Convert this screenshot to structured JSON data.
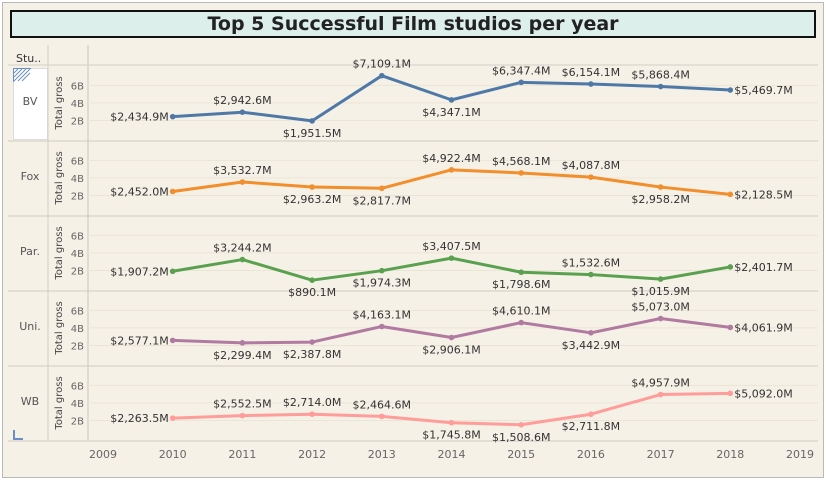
{
  "title": "Top 5 Successful Film studios per year",
  "studio_header": "Stu..",
  "chart_data": {
    "type": "line",
    "title": "Top 5 Successful Film studios per year",
    "row_dimension": "Stu..",
    "ylabel": "Total gross",
    "x": [
      2010,
      2011,
      2012,
      2013,
      2014,
      2015,
      2016,
      2017,
      2018
    ],
    "x_axis_ticks": [
      "2009",
      "2010",
      "2011",
      "2012",
      "2013",
      "2014",
      "2015",
      "2016",
      "2017",
      "2018",
      "2019"
    ],
    "y_axis_ticks": [
      "2B",
      "4B",
      "6B"
    ],
    "y_unit": "billions",
    "ylim": [
      0,
      7.3
    ],
    "grid": true,
    "series": [
      {
        "name": "BV",
        "color": "#4e79a7",
        "values": [
          2.4349,
          2.9426,
          1.9515,
          7.1091,
          4.3471,
          6.3474,
          6.1541,
          5.8684,
          5.4697
        ],
        "labels": [
          "$2,434.9M",
          "$2,942.6M",
          "$1,951.5M",
          "$7,109.1M",
          "$4,347.1M",
          "$6,347.4M",
          "$6,154.1M",
          "$5,868.4M",
          "$5,469.7M"
        ]
      },
      {
        "name": "Fox",
        "color": "#f28e2b",
        "values": [
          2.452,
          3.5327,
          2.9632,
          2.8177,
          4.9224,
          4.5681,
          4.0878,
          2.9582,
          2.1285
        ],
        "labels": [
          "$2,452.0M",
          "$3,532.7M",
          "$2,963.2M",
          "$2,817.7M",
          "$4,922.4M",
          "$4,568.1M",
          "$4,087.8M",
          "$2,958.2M",
          "$2,128.5M"
        ]
      },
      {
        "name": "Par.",
        "color": "#59a14f",
        "values": [
          1.9072,
          3.2442,
          0.8901,
          1.9743,
          3.4075,
          1.7986,
          1.5326,
          1.0159,
          2.4017
        ],
        "labels": [
          "$1,907.2M",
          "$3,244.2M",
          "$890.1M",
          "$1,974.3M",
          "$3,407.5M",
          "$1,798.6M",
          "$1,532.6M",
          "$1,015.9M",
          "$2,401.7M"
        ]
      },
      {
        "name": "Uni.",
        "color": "#b07aa1",
        "values": [
          2.5771,
          2.2994,
          2.3878,
          4.1631,
          2.9061,
          4.6101,
          3.4429,
          5.073,
          4.0619
        ],
        "labels": [
          "$2,577.1M",
          "$2,299.4M",
          "$2,387.8M",
          "$4,163.1M",
          "$2,906.1M",
          "$4,610.1M",
          "$3,442.9M",
          "$5,073.0M",
          "$4,061.9M"
        ]
      },
      {
        "name": "WB",
        "color": "#ff9d9a",
        "values": [
          2.2635,
          2.5525,
          2.714,
          2.4646,
          1.7458,
          1.5086,
          2.7118,
          4.9579,
          5.092
        ],
        "labels": [
          "$2,263.5M",
          "$2,552.5M",
          "$2,714.0M",
          "$2,464.6M",
          "$1,745.8M",
          "$1,508.6M",
          "$2,711.8M",
          "$4,957.9M",
          "$5,092.0M"
        ]
      }
    ]
  }
}
